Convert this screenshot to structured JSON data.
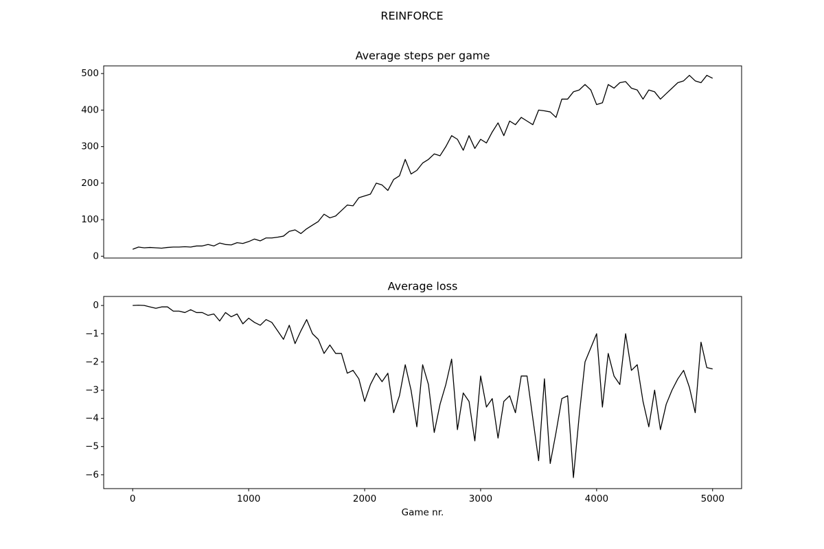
{
  "title": "REINFORCE",
  "chart_data": [
    {
      "type": "line",
      "title": "Average steps per game",
      "x": [
        0,
        50,
        100,
        150,
        200,
        250,
        300,
        350,
        400,
        450,
        500,
        550,
        600,
        650,
        700,
        750,
        800,
        850,
        900,
        950,
        1000,
        1050,
        1100,
        1150,
        1200,
        1250,
        1300,
        1350,
        1400,
        1450,
        1500,
        1550,
        1600,
        1650,
        1700,
        1750,
        1800,
        1850,
        1900,
        1950,
        2000,
        2050,
        2100,
        2150,
        2200,
        2250,
        2300,
        2350,
        2400,
        2450,
        2500,
        2550,
        2600,
        2650,
        2700,
        2750,
        2800,
        2850,
        2900,
        2950,
        3000,
        3050,
        3100,
        3150,
        3200,
        3250,
        3300,
        3350,
        3400,
        3450,
        3500,
        3550,
        3600,
        3650,
        3700,
        3750,
        3800,
        3850,
        3900,
        3950,
        4000,
        4050,
        4100,
        4150,
        4200,
        4250,
        4300,
        4350,
        4400,
        4450,
        4500,
        4550,
        4600,
        4650,
        4700,
        4750,
        4800,
        4850,
        4900,
        4950,
        5000
      ],
      "series": [
        {
          "color": "#000000",
          "values": [
            19,
            25,
            23,
            24,
            23,
            22,
            24,
            25,
            25,
            26,
            25,
            28,
            28,
            32,
            28,
            36,
            32,
            31,
            37,
            35,
            40,
            47,
            42,
            50,
            50,
            52,
            55,
            68,
            72,
            62,
            75,
            85,
            95,
            115,
            105,
            110,
            125,
            140,
            138,
            160,
            165,
            170,
            200,
            195,
            180,
            210,
            220,
            265,
            225,
            235,
            255,
            265,
            280,
            275,
            300,
            330,
            320,
            290,
            330,
            295,
            320,
            310,
            340,
            365,
            330,
            370,
            360,
            380,
            370,
            360,
            400,
            398,
            395,
            380,
            430,
            430,
            450,
            455,
            470,
            455,
            415,
            420,
            470,
            460,
            475,
            478,
            460,
            455,
            430,
            455,
            450,
            430,
            445,
            460,
            475,
            480,
            495,
            480,
            475,
            495,
            487
          ]
        }
      ],
      "xlim": [
        -250,
        5250
      ],
      "ylim": [
        -5,
        521
      ],
      "yticks": [
        0,
        100,
        200,
        300,
        400,
        500
      ]
    },
    {
      "type": "line",
      "title": "Average loss",
      "xlabel": "Game nr.",
      "x": [
        0,
        50,
        100,
        150,
        200,
        250,
        300,
        350,
        400,
        450,
        500,
        550,
        600,
        650,
        700,
        750,
        800,
        850,
        900,
        950,
        1000,
        1050,
        1100,
        1150,
        1200,
        1250,
        1300,
        1350,
        1400,
        1450,
        1500,
        1550,
        1600,
        1650,
        1700,
        1750,
        1800,
        1850,
        1900,
        1950,
        2000,
        2050,
        2100,
        2150,
        2200,
        2250,
        2300,
        2350,
        2400,
        2450,
        2500,
        2550,
        2600,
        2650,
        2700,
        2750,
        2800,
        2850,
        2900,
        2950,
        3000,
        3050,
        3100,
        3150,
        3200,
        3250,
        3300,
        3350,
        3400,
        3450,
        3500,
        3550,
        3600,
        3650,
        3700,
        3750,
        3800,
        3850,
        3900,
        3950,
        4000,
        4050,
        4100,
        4150,
        4200,
        4250,
        4300,
        4350,
        4400,
        4450,
        4500,
        4550,
        4600,
        4650,
        4700,
        4750,
        4800,
        4850,
        4900,
        4950,
        5000
      ],
      "series": [
        {
          "color": "#000000",
          "values": [
            0,
            0.01,
            0,
            -0.05,
            -0.1,
            -0.05,
            -0.05,
            -0.2,
            -0.2,
            -0.25,
            -0.15,
            -0.25,
            -0.25,
            -0.35,
            -0.3,
            -0.55,
            -0.25,
            -0.4,
            -0.3,
            -0.65,
            -0.45,
            -0.6,
            -0.7,
            -0.5,
            -0.6,
            -0.9,
            -1.2,
            -0.7,
            -1.35,
            -0.9,
            -0.5,
            -1.0,
            -1.2,
            -1.7,
            -1.4,
            -1.7,
            -1.7,
            -2.4,
            -2.3,
            -2.6,
            -3.4,
            -2.8,
            -2.4,
            -2.7,
            -2.4,
            -3.8,
            -3.2,
            -2.1,
            -3.0,
            -4.3,
            -2.1,
            -2.8,
            -4.5,
            -3.5,
            -2.8,
            -1.9,
            -4.4,
            -3.1,
            -3.4,
            -4.8,
            -2.5,
            -3.6,
            -3.3,
            -4.7,
            -3.4,
            -3.2,
            -3.8,
            -2.5,
            -2.5,
            -4.0,
            -5.5,
            -2.6,
            -5.6,
            -4.5,
            -3.3,
            -3.2,
            -6.1,
            -3.9,
            -2.0,
            -1.5,
            -1.0,
            -3.6,
            -1.7,
            -2.5,
            -2.8,
            -1.0,
            -2.3,
            -2.1,
            -3.4,
            -4.3,
            -3.0,
            -4.4,
            -3.5,
            -3.0,
            -2.6,
            -2.3,
            -2.9,
            -3.8,
            -1.3,
            -2.2,
            -2.25
          ]
        }
      ],
      "xlim": [
        -250,
        5250
      ],
      "ylim": [
        -6.49,
        0.32
      ],
      "xticks": [
        0,
        1000,
        2000,
        3000,
        4000,
        5000
      ],
      "yticks": [
        {
          "value": -6,
          "label": "−6"
        },
        {
          "value": -5,
          "label": "−5"
        },
        {
          "value": -4,
          "label": "−4"
        },
        {
          "value": -3,
          "label": "−3"
        },
        {
          "value": -2,
          "label": "−2"
        },
        {
          "value": -1,
          "label": "−1"
        },
        0
      ]
    }
  ]
}
